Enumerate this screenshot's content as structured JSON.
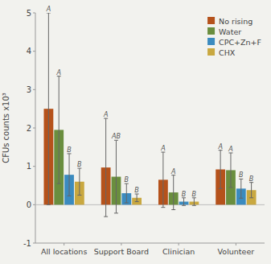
{
  "chart_data": {
    "type": "bar",
    "y_label": "CFUs counts x10³",
    "categories": [
      "All locations",
      "Support Board",
      "Clinician",
      "Volunteer"
    ],
    "series": [
      {
        "name": "No rising",
        "color": "#b5521b",
        "values": [
          2.5,
          0.97,
          0.65,
          0.92
        ],
        "error_upper": [
          2.5,
          1.28,
          0.72,
          0.5
        ],
        "error_lower": [
          2.5,
          1.28,
          0.72,
          0.5
        ],
        "sig_labels": [
          "A",
          "A",
          "A",
          "A"
        ]
      },
      {
        "name": "Water",
        "color": "#6a8e3e",
        "values": [
          1.95,
          0.73,
          0.32,
          0.9
        ],
        "error_upper": [
          1.4,
          0.95,
          0.45,
          0.45
        ],
        "error_lower": [
          1.4,
          0.95,
          0.45,
          0.45
        ],
        "sig_labels": [
          "A",
          "AB",
          "A",
          "A"
        ]
      },
      {
        "name": "CPC+Zn+F",
        "color": "#3b8bbf",
        "values": [
          0.78,
          0.3,
          0.08,
          0.42
        ],
        "error_upper": [
          0.55,
          0.25,
          0.1,
          0.25
        ],
        "error_lower": [
          0.55,
          0.25,
          0.1,
          0.25
        ],
        "sig_labels": [
          "B",
          "B",
          "B",
          "B"
        ]
      },
      {
        "name": "CHX",
        "color": "#c9a840",
        "values": [
          0.6,
          0.18,
          0.08,
          0.38
        ],
        "error_upper": [
          0.35,
          0.1,
          0.1,
          0.2
        ],
        "error_lower": [
          0.35,
          0.1,
          0.1,
          0.2
        ],
        "sig_labels": [
          "B",
          "B",
          "B",
          "B"
        ]
      }
    ],
    "ylim": [
      -1,
      5
    ],
    "yticks": [
      -1,
      0,
      1,
      2,
      3,
      4,
      5
    ],
    "grid": false,
    "legend": "upper right"
  }
}
